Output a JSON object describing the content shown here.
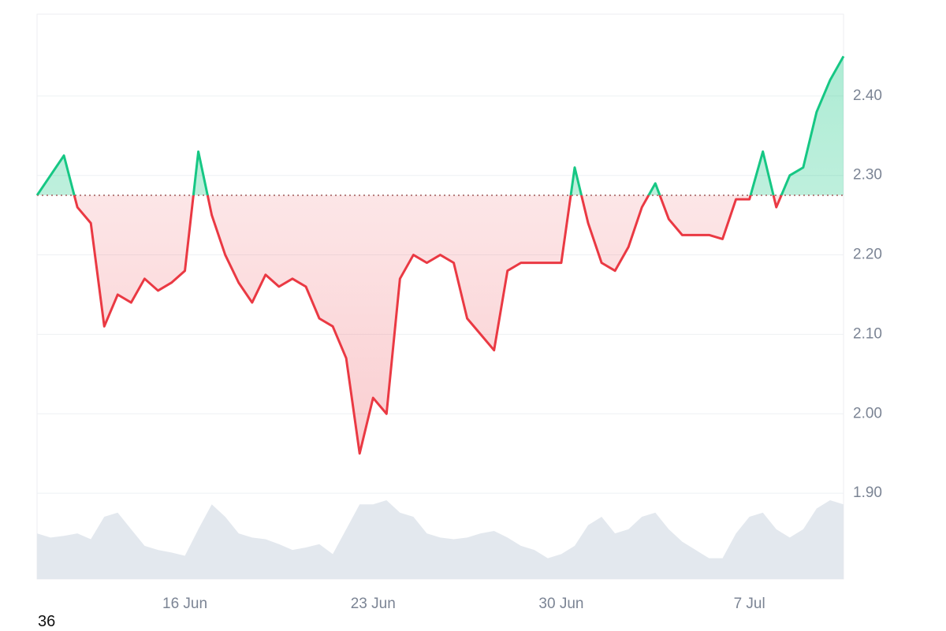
{
  "chart_data": {
    "type": "line",
    "categories": [
      null,
      null,
      null,
      null,
      null,
      null,
      null,
      null,
      null,
      null,
      null,
      "16 Jun",
      null,
      null,
      null,
      null,
      null,
      null,
      null,
      null,
      null,
      null,
      null,
      null,
      null,
      "23 Jun",
      null,
      null,
      null,
      null,
      null,
      null,
      null,
      null,
      null,
      null,
      null,
      null,
      null,
      "30 Jun",
      null,
      null,
      null,
      null,
      null,
      null,
      null,
      null,
      null,
      null,
      null,
      null,
      null,
      "7 Jul",
      null,
      null,
      null,
      null,
      null,
      null,
      null
    ],
    "series": [
      {
        "values": [
          2.275,
          2.3,
          2.325,
          2.26,
          2.24,
          2.11,
          2.15,
          2.14,
          2.17,
          2.155,
          2.165,
          2.18,
          2.33,
          2.25,
          2.2,
          2.165,
          2.14,
          2.175,
          2.16,
          2.17,
          2.16,
          2.12,
          2.11,
          2.07,
          1.95,
          2.02,
          2.0,
          2.17,
          2.2,
          2.19,
          2.2,
          2.19,
          2.12,
          2.1,
          2.08,
          2.18,
          2.19,
          2.19,
          2.19,
          2.19,
          2.31,
          2.24,
          2.19,
          2.18,
          2.21,
          2.26,
          2.29,
          2.245,
          2.225,
          2.225,
          2.225,
          2.22,
          2.27,
          2.27,
          2.33,
          2.26,
          2.3,
          2.31,
          2.38,
          2.42,
          2.45
        ]
      }
    ],
    "volume": [
      55,
      50,
      52,
      55,
      48,
      75,
      80,
      60,
      40,
      35,
      32,
      28,
      60,
      90,
      75,
      55,
      50,
      48,
      42,
      35,
      38,
      42,
      30,
      60,
      90,
      90,
      95,
      80,
      75,
      55,
      50,
      48,
      50,
      55,
      58,
      50,
      40,
      35,
      25,
      30,
      40,
      65,
      75,
      55,
      60,
      75,
      80,
      60,
      45,
      35,
      25,
      25,
      55,
      75,
      80,
      60,
      50,
      60,
      85,
      95,
      90
    ],
    "baseline": 2.275,
    "up_color": "#16c784",
    "down_color": "#ea3943",
    "volume_color": "#e3e8ee",
    "ylim": [
      1.792,
      2.503
    ],
    "yticks": [
      {
        "value": 1.9,
        "label": "1.90"
      },
      {
        "value": 2.0,
        "label": "2.00"
      },
      {
        "value": 2.1,
        "label": "2.10"
      },
      {
        "value": 2.2,
        "label": "2.20"
      },
      {
        "value": 2.3,
        "label": "2.30"
      },
      {
        "value": 2.4,
        "label": "2.40"
      }
    ],
    "grid": true
  },
  "footnote": "36"
}
